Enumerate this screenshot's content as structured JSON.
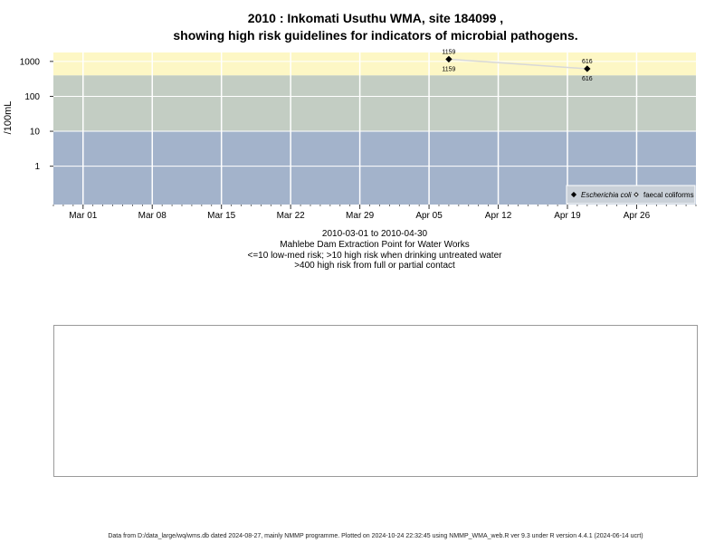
{
  "title_line1": "2010 : Inkomati Usuthu WMA, site 184099 ,",
  "title_line2": "showing high risk guidelines for indicators of microbial pathogens.",
  "captions": {
    "date_range": "2010-03-01 to 2010-04-30",
    "site_name": "Mahlebe Dam Extraction Point for Water Works",
    "risk_note_1": "<=10 low-med risk; >10 high risk when drinking untreated water",
    "risk_note_2": ">400 high risk from full or partial contact"
  },
  "footer": "Data from D:/data_large/wq/wms.db dated 2024-08-27, mainly NMMP programme. Plotted on 2024-10-24 22:32:45 using NMMP_WMA_web.R ver 9.3 under R version 4.4.1 (2024-06-14 ucrt)",
  "chart_data": {
    "type": "line",
    "ylabel": "/100mL",
    "y_scale": "log",
    "ylim": [
      0.08,
      1800
    ],
    "xlim": [
      "2010-02-26",
      "2010-05-02"
    ],
    "y_ticks": [
      {
        "value": 1,
        "label": "1"
      },
      {
        "value": 10,
        "label": "10"
      },
      {
        "value": 100,
        "label": "100"
      },
      {
        "value": 1000,
        "label": "1000"
      }
    ],
    "x_ticks": [
      {
        "date": "2010-03-01",
        "label": "Mar 01"
      },
      {
        "date": "2010-03-08",
        "label": "Mar 08"
      },
      {
        "date": "2010-03-15",
        "label": "Mar 15"
      },
      {
        "date": "2010-03-22",
        "label": "Mar 22"
      },
      {
        "date": "2010-03-29",
        "label": "Mar 29"
      },
      {
        "date": "2010-04-05",
        "label": "Apr 05"
      },
      {
        "date": "2010-04-12",
        "label": "Apr 12"
      },
      {
        "date": "2010-04-19",
        "label": "Apr 19"
      },
      {
        "date": "2010-04-26",
        "label": "Apr 26"
      }
    ],
    "bands": [
      {
        "from": 0.08,
        "to": 10,
        "color": "#a3b3cb"
      },
      {
        "from": 10,
        "to": 400,
        "color": "#c3cdc3"
      },
      {
        "from": 400,
        "to": 1800,
        "color": "#fdf7c5"
      }
    ],
    "grid": true,
    "legend_position": "bottom-right",
    "series": [
      {
        "name": "Escherichia coli",
        "marker": "filled-diamond",
        "color": "#000000",
        "points": [
          {
            "date": "2010-04-07",
            "value": 1159,
            "label": "1159"
          },
          {
            "date": "2010-04-21",
            "value": 616,
            "label": "616"
          }
        ]
      },
      {
        "name": "faecal coliforms",
        "marker": "open-diamond",
        "color": "#000000",
        "points": [
          {
            "date": "2010-04-07",
            "value": 1159,
            "label": "1159"
          },
          {
            "date": "2010-04-21",
            "value": 616,
            "label": "616"
          }
        ]
      }
    ],
    "connector_color": "#d8d8d8"
  }
}
